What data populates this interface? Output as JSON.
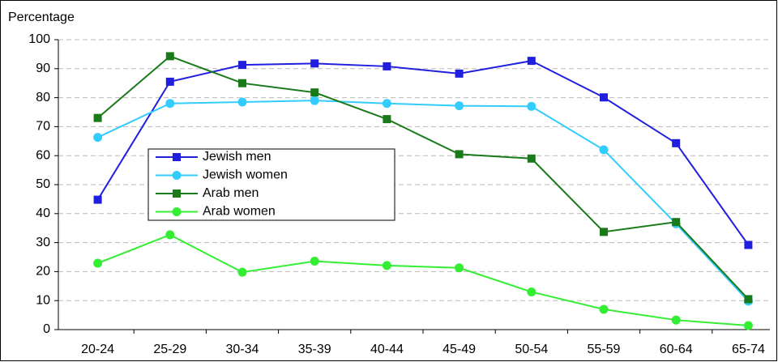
{
  "chart_data": {
    "type": "line",
    "y_label": "Percentage",
    "categories": [
      "20-24",
      "25-29",
      "30-34",
      "35-39",
      "40-44",
      "45-49",
      "50-54",
      "55-59",
      "60-64",
      "65-74"
    ],
    "series": [
      {
        "name": "Jewish men",
        "color": "#1f1fdd",
        "marker": "square",
        "values": [
          44.8,
          85.5,
          91.3,
          91.8,
          90.8,
          88.3,
          92.7,
          80.1,
          64.3,
          29.2
        ]
      },
      {
        "name": "Jewish women",
        "color": "#33ccff",
        "marker": "circle",
        "values": [
          66.3,
          78,
          78.5,
          79,
          78,
          77.2,
          77,
          62,
          36.5,
          9.8
        ]
      },
      {
        "name": "Arab men",
        "color": "#1a7a1a",
        "marker": "square",
        "values": [
          73,
          94.3,
          85,
          81.8,
          72.6,
          60.5,
          59,
          33.7,
          37.1,
          10.5
        ]
      },
      {
        "name": "Arab women",
        "color": "#33ee33",
        "marker": "circle",
        "values": [
          22.9,
          32.7,
          19.8,
          23.6,
          22.1,
          21.3,
          13,
          7,
          3.3,
          1.4
        ]
      }
    ],
    "ylim": [
      0,
      100
    ],
    "yticks": [
      0,
      10,
      20,
      30,
      40,
      50,
      60,
      70,
      80,
      90,
      100
    ],
    "grid": true
  }
}
